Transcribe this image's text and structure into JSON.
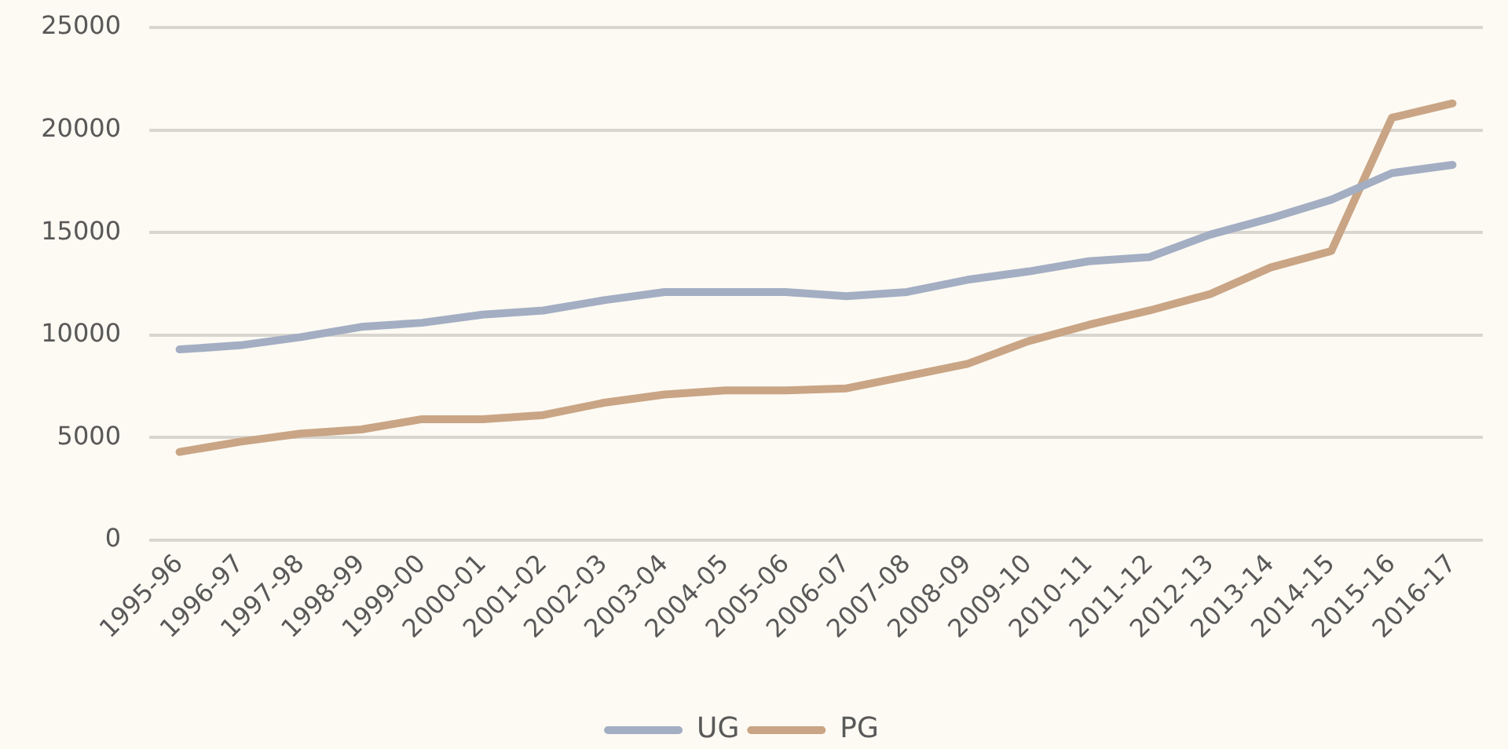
{
  "chart_data": {
    "type": "line",
    "categories": [
      "1995-96",
      "1996-97",
      "1997-98",
      "1998-99",
      "1999-00",
      "2000-01",
      "2001-02",
      "2002-03",
      "2003-04",
      "2004-05",
      "2005-06",
      "2006-07",
      "2007-08",
      "2008-09",
      "2009-10",
      "2010-11",
      "2011-12",
      "2012-13",
      "2013-14",
      "2014-15",
      "2015-16",
      "2016-17"
    ],
    "series": [
      {
        "name": "UG",
        "color": "#a3aec3",
        "values": [
          9300,
          9500,
          9900,
          10400,
          10600,
          11000,
          11200,
          11700,
          12100,
          12100,
          12100,
          11900,
          12100,
          12700,
          13100,
          13600,
          13800,
          14900,
          15700,
          16600,
          17900,
          18300
        ]
      },
      {
        "name": "PG",
        "color": "#c9a585",
        "values": [
          4300,
          4800,
          5200,
          5400,
          5900,
          5900,
          6100,
          6700,
          7100,
          7300,
          7300,
          7400,
          8000,
          8600,
          9700,
          10500,
          11200,
          12000,
          13300,
          14100,
          20600,
          21300
        ]
      }
    ],
    "ylim": [
      0,
      25000
    ],
    "yticks": [
      0,
      5000,
      10000,
      15000,
      20000,
      25000
    ],
    "grid": "y",
    "legend": "bottom",
    "marker": "none",
    "line_style": "solid"
  }
}
